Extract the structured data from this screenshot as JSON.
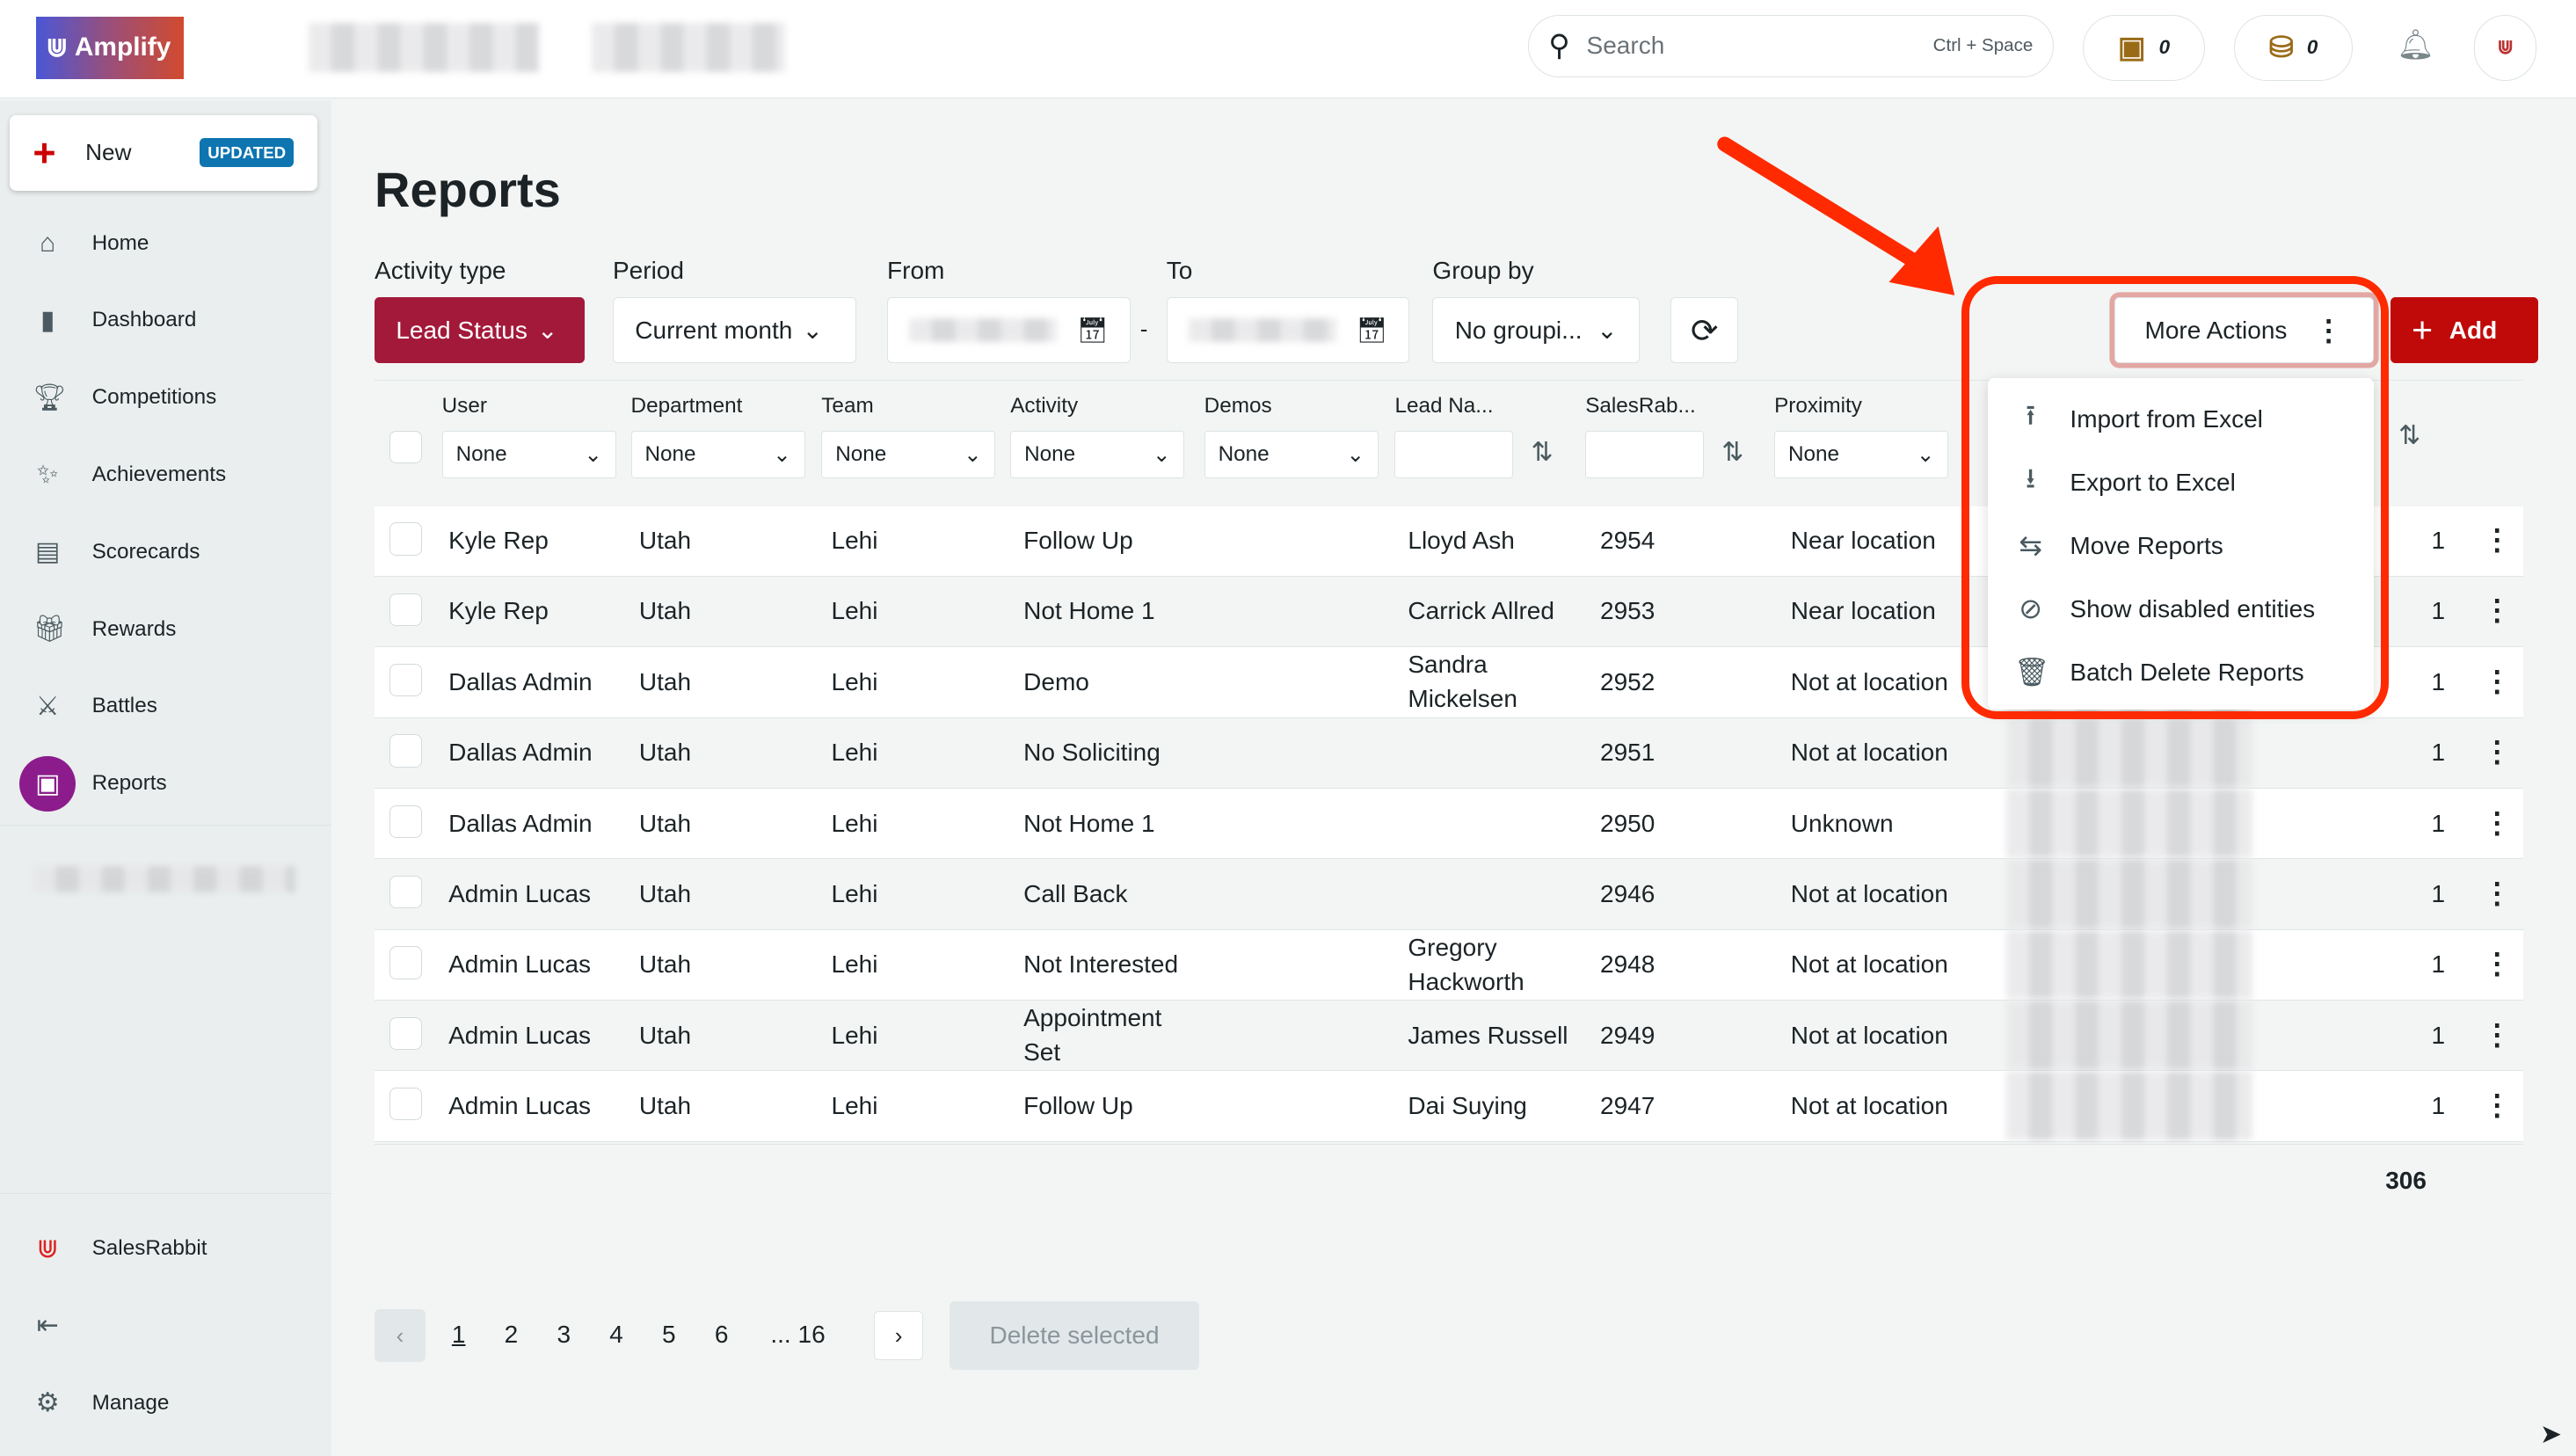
{
  "header": {
    "logo": "Amplify",
    "search_placeholder": "Search",
    "search_shortcut": "Ctrl + Space",
    "wallet_count": "0",
    "coins_count": "0"
  },
  "sidebar": {
    "new_label": "New",
    "new_badge": "UPDATED",
    "items": [
      {
        "label": "Home",
        "icon": "home-icon"
      },
      {
        "label": "Dashboard",
        "icon": "bar-chart-icon"
      },
      {
        "label": "Competitions",
        "icon": "trophy-icon"
      },
      {
        "label": "Achievements",
        "icon": "party-icon"
      },
      {
        "label": "Scorecards",
        "icon": "scorecard-icon"
      },
      {
        "label": "Rewards",
        "icon": "gift-icon"
      },
      {
        "label": "Battles",
        "icon": "swords-icon"
      },
      {
        "label": "Reports",
        "icon": "reports-icon",
        "active": true
      }
    ],
    "bottom": [
      {
        "label": "SalesRabbit"
      },
      {
        "label": ""
      },
      {
        "label": "Manage"
      }
    ]
  },
  "page": {
    "title": "Reports"
  },
  "filters": {
    "activity_type_label": "Activity type",
    "activity_type_value": "Lead Status",
    "period_label": "Period",
    "period_value": "Current month",
    "from_label": "From",
    "to_label": "To",
    "group_by_label": "Group by",
    "group_by_value": "No groupi...",
    "more_actions": "More Actions",
    "add": "Add"
  },
  "more_actions_menu": [
    "Import from Excel",
    "Export to Excel",
    "Move Reports",
    "Show disabled entities",
    "Batch Delete Reports"
  ],
  "table": {
    "columns": [
      "User",
      "Department",
      "Team",
      "Activity",
      "Demos",
      "Lead Na...",
      "SalesRab...",
      "Proximity"
    ],
    "filter_default": "None",
    "rows": [
      [
        "Kyle Rep",
        "Utah",
        "Lehi",
        "Follow Up",
        "Lloyd Ash",
        "2954",
        "Near location",
        "1"
      ],
      [
        "Kyle Rep",
        "Utah",
        "Lehi",
        "Not Home 1",
        "Carrick Allred",
        "2953",
        "Near location",
        "1"
      ],
      [
        "Dallas Admin",
        "Utah",
        "Lehi",
        "Demo",
        "Sandra Mickelsen",
        "2952",
        "Not at location",
        "1"
      ],
      [
        "Dallas Admin",
        "Utah",
        "Lehi",
        "No Soliciting",
        "",
        "2951",
        "Not at location",
        "1"
      ],
      [
        "Dallas Admin",
        "Utah",
        "Lehi",
        "Not Home 1",
        "",
        "2950",
        "Unknown",
        "1"
      ],
      [
        "Admin Lucas",
        "Utah",
        "Lehi",
        "Call Back",
        "",
        "2946",
        "Not at location",
        "1"
      ],
      [
        "Admin Lucas",
        "Utah",
        "Lehi",
        "Not Interested",
        "Gregory Hackworth",
        "2948",
        "Not at location",
        "1"
      ],
      [
        "Admin Lucas",
        "Utah",
        "Lehi",
        "Appointment Set",
        "James Russell",
        "2949",
        "Not at location",
        "1"
      ],
      [
        "Admin Lucas",
        "Utah",
        "Lehi",
        "Follow Up",
        "Dai Suying",
        "2947",
        "Not at location",
        "1"
      ]
    ],
    "total": "306"
  },
  "pagination": {
    "pages": [
      "1",
      "2",
      "3",
      "4",
      "5",
      "6",
      "... 16"
    ],
    "current": "1",
    "delete_selected": "Delete selected"
  },
  "colors": {
    "primary": "#a3193a",
    "add": "#c00a0a",
    "annotation": "#ff2a00",
    "reports_active": "#8c1c8c",
    "badge": "#0e75b0"
  }
}
